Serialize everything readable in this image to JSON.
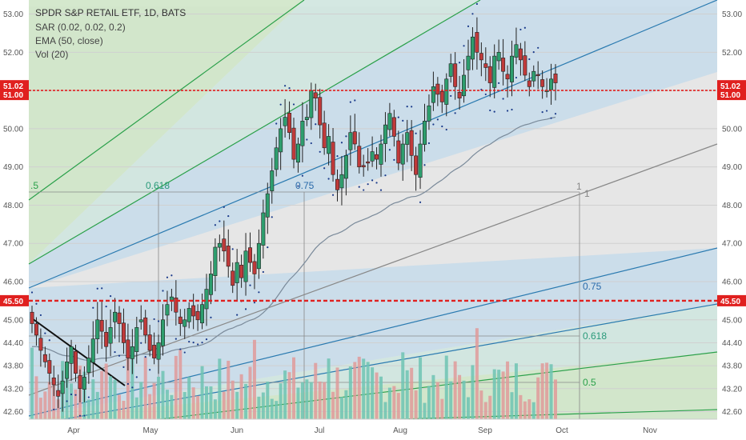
{
  "legend": {
    "title": "SPDR S&P RETAIL ETF, 1D, BATS",
    "lines": [
      "SAR (0.02, 0.02, 0.2)",
      "EMA (50, close)",
      "Vol (20)"
    ]
  },
  "colors": {
    "up": "#2e9e6e",
    "down": "#c03a3a",
    "vol_up": "#6ec3b3",
    "vol_down": "#e09a9a",
    "sar": "#1a3a8a",
    "ema": "#7a8a9a",
    "hline": "#e0201f",
    "price_tag": "#e0201f"
  },
  "x_labels": [
    "Apr",
    "May",
    "Jun",
    "Jul",
    "Aug",
    "Sep",
    "Oct",
    "Nov"
  ],
  "y_ticks": [
    "53.00",
    "52.00",
    "51.00",
    "50.00",
    "49.00",
    "48.00",
    "47.00",
    "46.00",
    "45.00",
    "44.40",
    "43.80",
    "43.20",
    "42.60"
  ],
  "price_tags": [
    {
      "text": "51.02",
      "value": 51.02
    },
    {
      "text": "51.00",
      "value": 51.0
    },
    {
      "text": "45.50",
      "value": 45.5
    }
  ],
  "fib_labels": [
    {
      "text": ".5",
      "color": "#2aa04a"
    },
    {
      "text": "0.618",
      "color": "#2a9a7a"
    },
    {
      "text": "0.75",
      "color": "#2a6aaa"
    },
    {
      "text": "1",
      "color": "#888888"
    },
    {
      "text": "1",
      "color": "#888888"
    },
    {
      "text": "0.75",
      "color": "#2a6aaa"
    },
    {
      "text": "0.618",
      "color": "#2a9a7a"
    },
    {
      "text": "0.5",
      "color": "#2aa04a"
    }
  ],
  "chart_data": {
    "type": "candlestick",
    "title": "SPDR S&P RETAIL ETF, 1D, BATS",
    "x_axis": {
      "labels": [
        "Apr",
        "May",
        "Jun",
        "Jul",
        "Aug",
        "Sep",
        "Oct",
        "Nov"
      ]
    },
    "y_axis": {
      "range": [
        42.4,
        53.2
      ],
      "ticks": [
        53.0,
        52.0,
        51.0,
        50.0,
        49.0,
        48.0,
        47.0,
        46.0,
        45.0,
        44.4,
        43.8,
        43.2,
        42.6
      ]
    },
    "indicators": [
      "SAR (0.02, 0.02, 0.2)",
      "EMA (50, close)",
      "Vol (20)"
    ],
    "horizontal_lines": [
      51.0,
      45.5
    ],
    "close_series_approx": [
      44.9,
      44.6,
      44.2,
      43.9,
      43.6,
      43.3,
      43.0,
      43.4,
      43.9,
      44.3,
      43.6,
      43.2,
      43.5,
      44.0,
      44.5,
      45.0,
      44.7,
      44.3,
      44.8,
      45.2,
      44.9,
      44.4,
      44.0,
      44.3,
      44.8,
      45.0,
      44.6,
      44.2,
      44.0,
      44.4,
      45.0,
      45.4,
      45.6,
      45.2,
      44.9,
      45.0,
      45.3,
      45.1,
      45.0,
      45.4,
      45.8,
      46.2,
      46.9,
      47.0,
      46.8,
      46.4,
      45.9,
      46.5,
      46.1,
      46.8,
      46.5,
      46.2,
      47.0,
      47.8,
      48.3,
      48.9,
      49.5,
      50.0,
      50.3,
      49.9,
      49.2,
      49.6,
      50.2,
      50.3,
      51.0,
      50.8,
      50.1,
      49.5,
      49.8,
      48.8,
      48.4,
      48.8,
      49.3,
      49.9,
      49.6,
      49.0,
      49.0,
      49.1,
      49.4,
      49.2,
      49.6,
      50.1,
      50.4,
      49.8,
      49.1,
      49.6,
      49.9,
      49.3,
      48.8,
      49.6,
      50.2,
      50.6,
      51.1,
      50.9,
      50.7,
      51.3,
      51.7,
      51.1,
      50.8,
      51.4,
      51.9,
      52.4,
      52.0,
      51.8,
      51.6,
      51.2,
      51.9,
      52.0,
      51.5,
      51.3,
      51.9,
      52.2,
      51.8,
      51.4,
      51.1,
      51.5,
      51.4,
      51.1,
      51.0,
      51.3,
      51.2
    ]
  }
}
